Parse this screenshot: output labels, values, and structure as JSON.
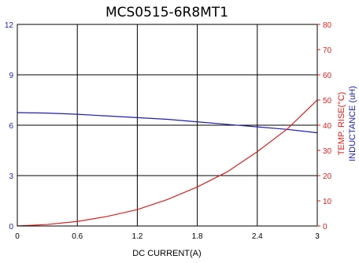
{
  "chart_data": {
    "type": "line",
    "title": "MCS0515-6R8MT1",
    "xlabel": "DC CURRENT(A)",
    "ylabel_left": "",
    "ylabel_right_temp": "TEMP. RISE(°C)",
    "ylabel_right_ind": "INDUCTANCE (uH)",
    "xlim": [
      0,
      3
    ],
    "ylim_left": [
      0,
      12
    ],
    "ylim_right": [
      0,
      80
    ],
    "x_ticks": [
      "0",
      "0.6",
      "1.2",
      "1.8",
      "2.4",
      "3"
    ],
    "y_left_ticks": [
      "0",
      "3",
      "6",
      "9",
      "12"
    ],
    "y_right_ticks": [
      "0",
      "10",
      "20",
      "30",
      "40",
      "50",
      "60",
      "70",
      "80"
    ],
    "grid": true,
    "series": [
      {
        "axis": "left",
        "color": "#1f1fa8",
        "x": [
          0,
          0.3,
          0.6,
          0.9,
          1.2,
          1.5,
          1.8,
          2.1,
          2.4,
          2.7,
          3.0
        ],
        "y": [
          6.75,
          6.72,
          6.65,
          6.55,
          6.45,
          6.35,
          6.2,
          6.05,
          5.9,
          5.75,
          5.55
        ]
      },
      {
        "axis": "right",
        "color": "#d42020",
        "x": [
          0,
          0.3,
          0.6,
          0.9,
          1.2,
          1.5,
          1.8,
          2.1,
          2.4,
          2.7,
          3.0
        ],
        "y": [
          0,
          0.6,
          1.8,
          3.8,
          6.5,
          10.5,
          15.5,
          21.5,
          29.5,
          38.5,
          50
        ]
      }
    ]
  },
  "colors": {
    "frame": "#000000",
    "grid": "#000000",
    "left_axis_text": "#1f1fa8",
    "right_axis_text": "#d42020",
    "inductance_label": "#1f1fa8",
    "temp_label": "#d42020"
  }
}
